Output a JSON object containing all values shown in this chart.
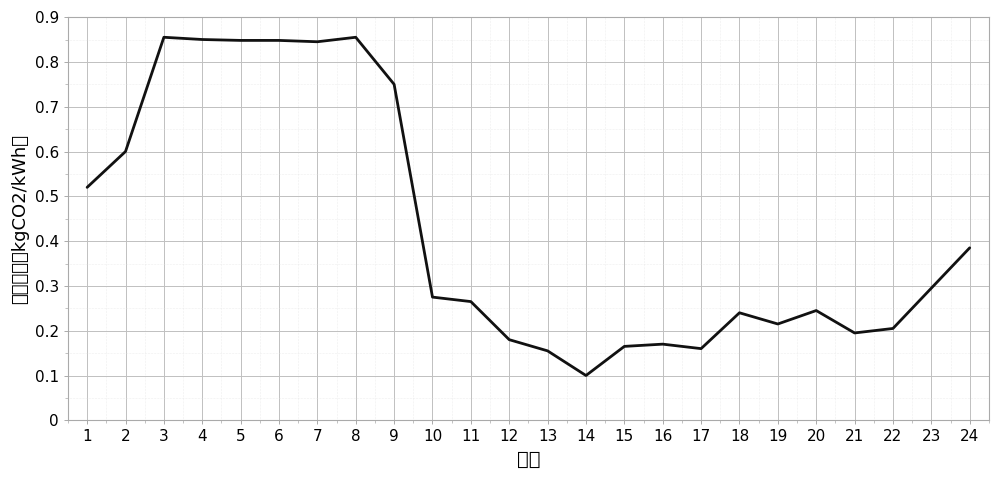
{
  "x": [
    1,
    2,
    3,
    4,
    5,
    6,
    7,
    8,
    9,
    10,
    11,
    12,
    13,
    14,
    15,
    16,
    17,
    18,
    19,
    20,
    21,
    22,
    23,
    24
  ],
  "y": [
    0.52,
    0.6,
    0.855,
    0.85,
    0.848,
    0.848,
    0.845,
    0.855,
    0.75,
    0.275,
    0.265,
    0.18,
    0.155,
    0.1,
    0.165,
    0.17,
    0.16,
    0.24,
    0.215,
    0.245,
    0.195,
    0.205,
    0.295,
    0.385
  ],
  "xlabel": "时段",
  "ylabel": "节点碳势（kgCO2/kWh）",
  "line_color": "#111111",
  "line_width": 2.0,
  "xlim_left": 0.5,
  "xlim_right": 24.5,
  "ylim": [
    0,
    0.9
  ],
  "yticks": [
    0,
    0.1,
    0.2,
    0.3,
    0.4,
    0.5,
    0.6,
    0.7,
    0.8,
    0.9
  ],
  "xticks": [
    1,
    2,
    3,
    4,
    5,
    6,
    7,
    8,
    9,
    10,
    11,
    12,
    13,
    14,
    15,
    16,
    17,
    18,
    19,
    20,
    21,
    22,
    23,
    24
  ],
  "major_grid_color": "#c0c0c0",
  "minor_grid_color": "#e0e0e0",
  "bg_color": "#ffffff",
  "xlabel_fontsize": 14,
  "ylabel_fontsize": 13,
  "tick_fontsize": 11,
  "fig_width": 10.0,
  "fig_height": 4.8,
  "dpi": 100
}
